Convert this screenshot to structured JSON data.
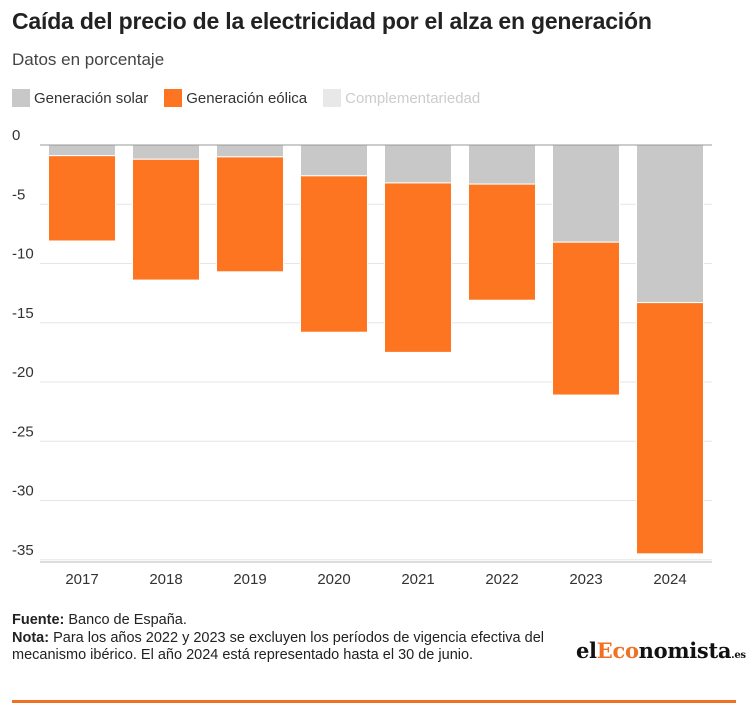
{
  "chart_data": {
    "type": "bar",
    "stacked": true,
    "title": "Caída del precio de la electricidad por el alza en generación",
    "subtitle": "Datos en porcentaje",
    "categories": [
      "2017",
      "2018",
      "2019",
      "2020",
      "2021",
      "2022",
      "2023",
      "2024"
    ],
    "series": [
      {
        "name": "Generación solar",
        "color": "#c8c8c8",
        "values": [
          -0.9,
          -1.2,
          -1.0,
          -2.6,
          -3.2,
          -3.3,
          -8.2,
          -13.3
        ]
      },
      {
        "name": "Generación eólica",
        "color": "#fd7521",
        "values": [
          -7.2,
          -10.2,
          -9.7,
          -13.2,
          -14.3,
          -9.8,
          -12.9,
          -21.2
        ]
      },
      {
        "name": "Complementariedad",
        "color": "#e8e8e8",
        "values": [
          0,
          0,
          0,
          0,
          0,
          0,
          0,
          0
        ]
      }
    ],
    "yticks": [
      0,
      -5,
      -10,
      -15,
      -20,
      -25,
      -30,
      -35
    ],
    "ylim": [
      -35,
      0
    ],
    "grid": true,
    "legend_position": "top-left"
  },
  "footer": {
    "source_label": "Fuente:",
    "source_text": "Banco de España.",
    "note_label": "Nota:",
    "note_text": "Para los años 2022 y 2023 se excluyen los períodos de vigencia efectiva del mecanismo ibérico. El año 2024 está representado hasta el 30 de junio."
  },
  "logo": {
    "part1": "el",
    "part2": "Eco",
    "part3": "nomista",
    "part4": ".es"
  },
  "colors": {
    "accent": "#f07122"
  }
}
